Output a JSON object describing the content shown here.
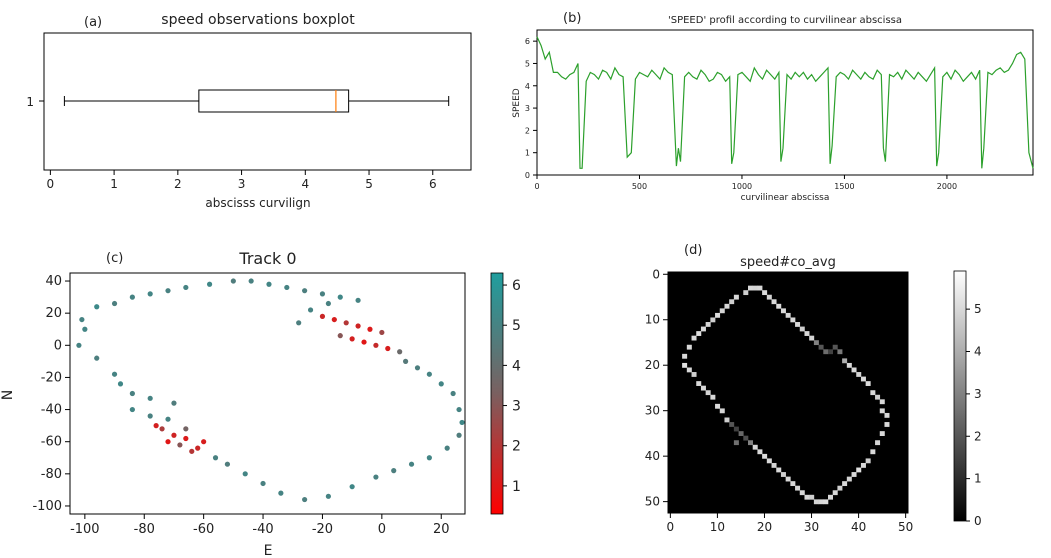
{
  "panels": {
    "a": "(a)",
    "b": "(b)",
    "c": "(c)",
    "d": "(d)"
  },
  "chart_data": [
    {
      "id": "a",
      "type": "boxplot",
      "title": "speed observations boxplot",
      "xlabel": "abscisss curvilign",
      "ylabel": "",
      "y_category": "1",
      "xlim": [
        -0.1,
        6.6
      ],
      "xticks": [
        0,
        1,
        2,
        3,
        4,
        5,
        6
      ],
      "box": {
        "whisker_low": 0.22,
        "q1": 2.33,
        "median": 4.48,
        "q3": 4.68,
        "whisker_high": 6.25
      },
      "colors": {
        "box": "#000000",
        "median": "#ff7f0e"
      }
    },
    {
      "id": "b",
      "type": "line",
      "title": "'SPEED' profil according to curvilinear abscissa",
      "xlabel": "curvilinear abscissa",
      "ylabel": "SPEED",
      "xlim": [
        0,
        2420
      ],
      "ylim": [
        0,
        6.5
      ],
      "xticks": [
        0,
        500,
        1000,
        1500,
        2000
      ],
      "yticks": [
        0,
        1,
        2,
        3,
        4,
        5,
        6
      ],
      "color": "#2ca02c",
      "series": [
        {
          "x": [
            0,
            20,
            40,
            60,
            80,
            100,
            120,
            140,
            160,
            180,
            200,
            210,
            220,
            240,
            260,
            280,
            300,
            320,
            340,
            360,
            380,
            400,
            420,
            440,
            460,
            480,
            500,
            520,
            540,
            560,
            580,
            600,
            620,
            640,
            660,
            680,
            690,
            700,
            720,
            740,
            760,
            780,
            800,
            820,
            840,
            860,
            880,
            900,
            920,
            940,
            950,
            960,
            980,
            1000,
            1020,
            1040,
            1060,
            1080,
            1100,
            1120,
            1140,
            1160,
            1180,
            1190,
            1200,
            1220,
            1240,
            1260,
            1280,
            1300,
            1320,
            1340,
            1360,
            1380,
            1400,
            1420,
            1430,
            1440,
            1460,
            1480,
            1500,
            1520,
            1540,
            1560,
            1580,
            1600,
            1620,
            1640,
            1660,
            1680,
            1690,
            1700,
            1720,
            1740,
            1760,
            1780,
            1800,
            1820,
            1840,
            1860,
            1880,
            1900,
            1920,
            1940,
            1950,
            1960,
            1980,
            2000,
            2020,
            2040,
            2060,
            2080,
            2100,
            2120,
            2140,
            2160,
            2170,
            2180,
            2200,
            2220,
            2240,
            2260,
            2280,
            2300,
            2320,
            2340,
            2360,
            2380,
            2400,
            2420
          ],
          "y": [
            6.2,
            5.8,
            5.2,
            5.5,
            4.6,
            4.6,
            4.4,
            4.3,
            4.5,
            4.6,
            5.0,
            0.3,
            0.3,
            4.2,
            4.6,
            4.5,
            4.3,
            4.7,
            4.6,
            4.3,
            4.8,
            4.5,
            4.4,
            0.8,
            1.0,
            4.3,
            4.6,
            4.5,
            4.4,
            4.7,
            4.5,
            4.3,
            4.8,
            4.6,
            4.5,
            0.4,
            1.2,
            0.6,
            4.4,
            4.6,
            4.4,
            4.3,
            4.7,
            4.5,
            4.2,
            4.3,
            4.6,
            4.5,
            4.2,
            4.4,
            0.5,
            1.0,
            4.5,
            4.6,
            4.4,
            4.2,
            4.8,
            4.5,
            4.3,
            4.7,
            4.5,
            4.3,
            4.6,
            0.6,
            1.2,
            4.5,
            4.3,
            4.6,
            4.4,
            4.6,
            4.3,
            4.5,
            4.2,
            4.4,
            4.6,
            4.8,
            0.5,
            1.3,
            4.4,
            4.6,
            4.5,
            4.3,
            4.7,
            4.5,
            4.3,
            4.6,
            4.4,
            4.3,
            4.7,
            4.5,
            1.2,
            0.6,
            4.5,
            4.4,
            4.6,
            4.3,
            4.7,
            4.5,
            4.3,
            4.6,
            4.4,
            4.2,
            4.5,
            4.8,
            0.4,
            1.0,
            4.4,
            4.6,
            4.3,
            4.7,
            4.5,
            4.2,
            4.4,
            4.6,
            4.3,
            4.7,
            0.3,
            1.2,
            4.6,
            4.5,
            4.7,
            4.8,
            4.6,
            4.7,
            5.0,
            5.4,
            5.5,
            5.2,
            1.0,
            0.3
          ]
        }
      ]
    },
    {
      "id": "c",
      "type": "scatter",
      "title": "Track 0",
      "xlabel": "E",
      "ylabel": "N",
      "xlim": [
        -105,
        28
      ],
      "ylim": [
        -105,
        45
      ],
      "xticks": [
        -100,
        -80,
        -60,
        -40,
        -20,
        0,
        20
      ],
      "yticks": [
        40,
        20,
        0,
        -20,
        -40,
        -60,
        -80,
        -100
      ],
      "colorbar": {
        "min": 0.3,
        "max": 6.3,
        "ticks": [
          1,
          2,
          3,
          4,
          5,
          6
        ],
        "colors": [
          "#ff0000",
          "#7a6060",
          "#1f9e9e"
        ]
      },
      "points": [
        [
          -102,
          0,
          5
        ],
        [
          -96,
          -8,
          4.8
        ],
        [
          -90,
          -18,
          5
        ],
        [
          -88,
          -24,
          5.2
        ],
        [
          -84,
          -30,
          4.9
        ],
        [
          -78,
          -33,
          5
        ],
        [
          -70,
          -36,
          4.7
        ],
        [
          -100,
          10,
          5.1
        ],
        [
          -101,
          16,
          5
        ],
        [
          -96,
          24,
          5.3
        ],
        [
          -90,
          26,
          4.8
        ],
        [
          -84,
          30,
          5
        ],
        [
          -78,
          32,
          5.1
        ],
        [
          -72,
          34,
          4.9
        ],
        [
          -66,
          36,
          5
        ],
        [
          -58,
          38,
          5.2
        ],
        [
          -50,
          40,
          4.7
        ],
        [
          -44,
          40,
          4.9
        ],
        [
          -38,
          38,
          5.1
        ],
        [
          -32,
          36,
          5
        ],
        [
          -26,
          34,
          4.8
        ],
        [
          -20,
          32,
          4.9
        ],
        [
          -14,
          30,
          5.2
        ],
        [
          -8,
          28,
          5
        ],
        [
          -20,
          18,
          1.5
        ],
        [
          -16,
          16,
          1.2
        ],
        [
          -12,
          14,
          2.0
        ],
        [
          -8,
          12,
          1.4
        ],
        [
          -4,
          10,
          1.1
        ],
        [
          0,
          8,
          2.5
        ],
        [
          -14,
          6,
          3.0
        ],
        [
          -10,
          4,
          1.3
        ],
        [
          -6,
          2,
          1.0
        ],
        [
          -2,
          0,
          1.6
        ],
        [
          2,
          -2,
          1.2
        ],
        [
          6,
          -4,
          3.8
        ],
        [
          8,
          -10,
          4.5
        ],
        [
          12,
          -14,
          4.8
        ],
        [
          16,
          -18,
          5
        ],
        [
          20,
          -24,
          5.1
        ],
        [
          24,
          -30,
          4.9
        ],
        [
          26,
          -40,
          5
        ],
        [
          27,
          -48,
          5.2
        ],
        [
          26,
          -56,
          4.7
        ],
        [
          22,
          -64,
          4.9
        ],
        [
          16,
          -70,
          5.1
        ],
        [
          10,
          -74,
          5
        ],
        [
          4,
          -78,
          4.8
        ],
        [
          -2,
          -82,
          4.9
        ],
        [
          -10,
          -88,
          5.2
        ],
        [
          -18,
          -94,
          5
        ],
        [
          -26,
          -96,
          4.8
        ],
        [
          -34,
          -92,
          5
        ],
        [
          -40,
          -86,
          4.9
        ],
        [
          -46,
          -80,
          5.1
        ],
        [
          -52,
          -74,
          4.7
        ],
        [
          -56,
          -70,
          4.9
        ],
        [
          -60,
          -60,
          1.2
        ],
        [
          -62,
          -64,
          1.5
        ],
        [
          -64,
          -66,
          2.0
        ],
        [
          -66,
          -58,
          1.1
        ],
        [
          -68,
          -62,
          3.0
        ],
        [
          -70,
          -56,
          1.4
        ],
        [
          -72,
          -60,
          1.0
        ],
        [
          -74,
          -52,
          2.2
        ],
        [
          -76,
          -50,
          1.3
        ],
        [
          -66,
          -52,
          3.5
        ],
        [
          -72,
          -46,
          5
        ],
        [
          -78,
          -44,
          4.9
        ],
        [
          -84,
          -40,
          5.1
        ],
        [
          -28,
          14,
          4.8
        ],
        [
          -24,
          22,
          5
        ],
        [
          -18,
          26,
          4.9
        ]
      ]
    },
    {
      "id": "d",
      "type": "heatmap",
      "title": "speed#co_avg",
      "xlim": [
        0,
        51
      ],
      "ylim": [
        0,
        53
      ],
      "xticks": [
        0,
        10,
        20,
        30,
        40,
        50
      ],
      "yticks": [
        0,
        10,
        20,
        30,
        40,
        50
      ],
      "colorbar": {
        "min": 0,
        "max": 5.9,
        "ticks": [
          0,
          1,
          2,
          3,
          4,
          5
        ]
      },
      "cells": [
        [
          17,
          3,
          5
        ],
        [
          18,
          3,
          4.9
        ],
        [
          19,
          3,
          5
        ],
        [
          16,
          4,
          4.8
        ],
        [
          20,
          4,
          5.1
        ],
        [
          21,
          5,
          4.9
        ],
        [
          14,
          5,
          5
        ],
        [
          13,
          6,
          4.8
        ],
        [
          22,
          6,
          5
        ],
        [
          23,
          7,
          5.1
        ],
        [
          12,
          7,
          5
        ],
        [
          11,
          8,
          4.9
        ],
        [
          24,
          8,
          5
        ],
        [
          25,
          9,
          5
        ],
        [
          10,
          9,
          5.1
        ],
        [
          9,
          10,
          4.8
        ],
        [
          26,
          10,
          5
        ],
        [
          8,
          11,
          4.9
        ],
        [
          27,
          11,
          5
        ],
        [
          28,
          12,
          4.8
        ],
        [
          7,
          12,
          5
        ],
        [
          29,
          13,
          5
        ],
        [
          6,
          13,
          5.1
        ],
        [
          30,
          14,
          4.9
        ],
        [
          5,
          14,
          5
        ],
        [
          31,
          15,
          3
        ],
        [
          32,
          16,
          2
        ],
        [
          4,
          16,
          5
        ],
        [
          33,
          17,
          2.5
        ],
        [
          34,
          17,
          1.5
        ],
        [
          35,
          16,
          2
        ],
        [
          36,
          17,
          2.8
        ],
        [
          3,
          18,
          5
        ],
        [
          37,
          19,
          4
        ],
        [
          38,
          20,
          5
        ],
        [
          3,
          20,
          5.2
        ],
        [
          4,
          21,
          5
        ],
        [
          39,
          21,
          5
        ],
        [
          40,
          22,
          4.9
        ],
        [
          5,
          22,
          4.8
        ],
        [
          41,
          23,
          5
        ],
        [
          6,
          24,
          5
        ],
        [
          42,
          24,
          5.1
        ],
        [
          7,
          25,
          5
        ],
        [
          43,
          26,
          5
        ],
        [
          8,
          26,
          4.9
        ],
        [
          44,
          27,
          4.8
        ],
        [
          9,
          27,
          5
        ],
        [
          45,
          28,
          5
        ],
        [
          10,
          29,
          5.1
        ],
        [
          45,
          30,
          5
        ],
        [
          11,
          30,
          4.9
        ],
        [
          46,
          31,
          5
        ],
        [
          12,
          32,
          4.8
        ],
        [
          46,
          33,
          5
        ],
        [
          13,
          33,
          2
        ],
        [
          14,
          34,
          1.5
        ],
        [
          15,
          35,
          2.4
        ],
        [
          16,
          36,
          1.8
        ],
        [
          45,
          35,
          5
        ],
        [
          14,
          37,
          2.6
        ],
        [
          17,
          37,
          3
        ],
        [
          18,
          38,
          5
        ],
        [
          44,
          37,
          4.9
        ],
        [
          19,
          39,
          5
        ],
        [
          43,
          39,
          5
        ],
        [
          20,
          40,
          5.1
        ],
        [
          42,
          41,
          4.8
        ],
        [
          21,
          41,
          5
        ],
        [
          22,
          42,
          4.9
        ],
        [
          41,
          42,
          5
        ],
        [
          23,
          43,
          5
        ],
        [
          40,
          43,
          5.2
        ],
        [
          24,
          44,
          4.8
        ],
        [
          39,
          44,
          5
        ],
        [
          25,
          45,
          5
        ],
        [
          38,
          45,
          4.9
        ],
        [
          26,
          46,
          5
        ],
        [
          37,
          46,
          5
        ],
        [
          27,
          47,
          4.9
        ],
        [
          36,
          47,
          4.8
        ],
        [
          28,
          48,
          5
        ],
        [
          35,
          48,
          5
        ],
        [
          29,
          49,
          5
        ],
        [
          30,
          49,
          4.8
        ],
        [
          31,
          50,
          4.9
        ],
        [
          32,
          50,
          5
        ],
        [
          33,
          50,
          5.1
        ],
        [
          34,
          49,
          5
        ]
      ]
    }
  ]
}
